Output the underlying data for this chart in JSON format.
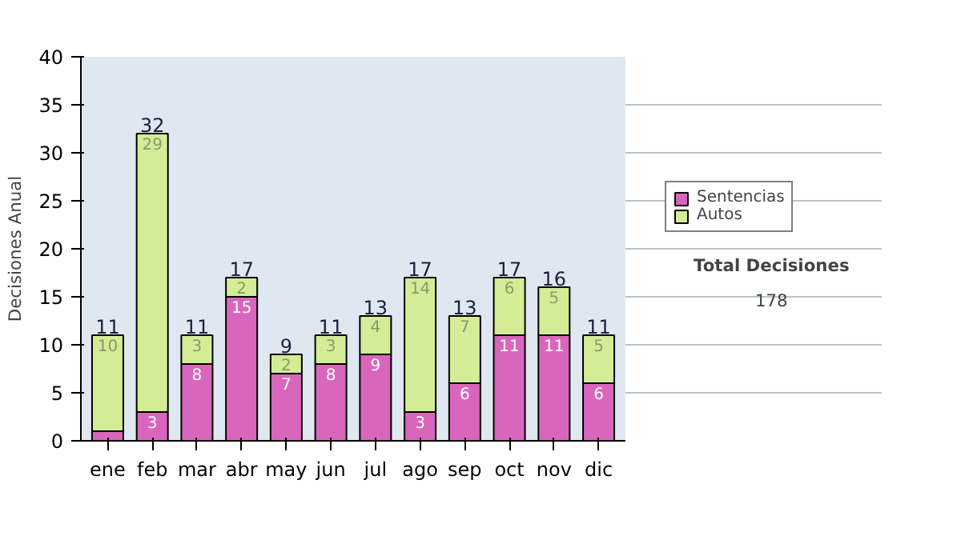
{
  "chart_data": {
    "type": "bar",
    "stacked": true,
    "ylabel": "Decisiones Anual",
    "categories": [
      "ene",
      "feb",
      "mar",
      "abr",
      "may",
      "jun",
      "jul",
      "ago",
      "sep",
      "oct",
      "nov",
      "dic"
    ],
    "series": [
      {
        "name": "Sentencias",
        "color": "#d966bd",
        "values": [
          1,
          3,
          8,
          15,
          7,
          8,
          9,
          3,
          6,
          11,
          11,
          6
        ],
        "value_labels": [
          null,
          "3",
          "8",
          "15",
          "7",
          "8",
          "9",
          "3",
          "6",
          "11",
          "11",
          "6"
        ]
      },
      {
        "name": "Autos",
        "color": "#d3ec96",
        "values": [
          10,
          29,
          3,
          2,
          2,
          3,
          4,
          14,
          7,
          6,
          5,
          5
        ],
        "value_labels": [
          "10",
          "29",
          "3",
          "2",
          "2",
          "3",
          "4",
          "14",
          "7",
          "6",
          "5",
          "5"
        ]
      }
    ],
    "totals": [
      "11",
      "32",
      "11",
      "17",
      "9",
      "11",
      "13",
      "17",
      "13",
      "17",
      "16",
      "11"
    ],
    "ylim": [
      0,
      40
    ],
    "yticks": [
      0,
      5,
      10,
      15,
      20,
      25,
      30,
      35,
      40
    ],
    "grid": "y",
    "legend": "right",
    "annotations": [
      "Total Decisiones",
      "178"
    ]
  }
}
